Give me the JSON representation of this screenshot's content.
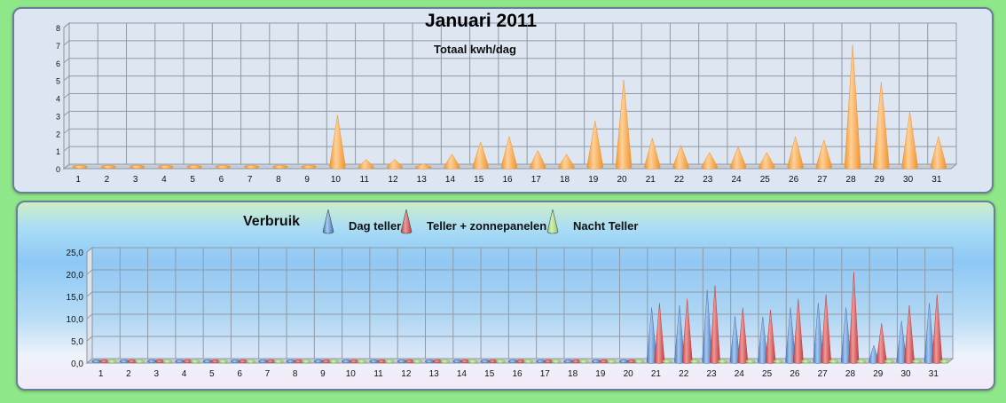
{
  "chart_data": [
    {
      "type": "bar",
      "title": "Januari 2011",
      "subtitle": "Totaal kwh/dag",
      "categories": [
        "1",
        "2",
        "3",
        "4",
        "5",
        "6",
        "7",
        "8",
        "9",
        "10",
        "11",
        "12",
        "13",
        "14",
        "15",
        "16",
        "17",
        "18",
        "19",
        "20",
        "21",
        "22",
        "23",
        "24",
        "25",
        "26",
        "27",
        "28",
        "29",
        "30",
        "31"
      ],
      "values": [
        0,
        0,
        0,
        0,
        0,
        0,
        0,
        0,
        0,
        2.9,
        0.4,
        0.4,
        0.15,
        0.7,
        1.4,
        1.7,
        0.9,
        0.7,
        2.6,
        4.9,
        1.6,
        1.2,
        0.8,
        1.1,
        0.8,
        1.7,
        1.5,
        6.9,
        4.8,
        3.1,
        1.7
      ],
      "yticks": [
        "0",
        "1",
        "2",
        "3",
        "4",
        "5",
        "6",
        "7",
        "8"
      ],
      "ylim": [
        0,
        8
      ],
      "grid": true,
      "colors": {
        "bar": "#f0922a"
      }
    },
    {
      "type": "bar",
      "title": "Verbruik",
      "categories": [
        "1",
        "2",
        "3",
        "4",
        "5",
        "6",
        "7",
        "8",
        "9",
        "10",
        "11",
        "12",
        "13",
        "14",
        "15",
        "16",
        "17",
        "18",
        "19",
        "20",
        "21",
        "22",
        "23",
        "24",
        "25",
        "26",
        "27",
        "28",
        "29",
        "30",
        "31"
      ],
      "series": [
        {
          "name": "Dag teller",
          "color": "#3f74b8",
          "values": [
            0,
            0,
            0,
            0,
            0,
            0,
            0,
            0,
            0,
            0,
            0,
            0,
            0,
            0,
            0,
            0,
            0,
            0,
            0,
            0,
            12.0,
            12.5,
            16.0,
            10.0,
            10.0,
            12.0,
            13.0,
            12.0,
            3.5,
            9.0,
            13.0
          ]
        },
        {
          "name": "Teller + zonnepanelen",
          "color": "#c13a3a",
          "values": [
            0,
            0,
            0,
            0,
            0,
            0,
            0,
            0,
            0,
            0,
            0,
            0,
            0,
            0,
            0,
            0,
            0,
            0,
            0,
            0,
            13.0,
            14.0,
            17.0,
            12.0,
            11.5,
            14.0,
            15.0,
            20.0,
            8.5,
            12.5,
            15.0
          ]
        },
        {
          "name": "Nacht Teller",
          "color": "#92c462",
          "values": [
            0,
            0,
            0,
            0,
            0,
            0,
            0,
            0,
            0,
            0,
            0,
            0,
            0,
            0,
            0,
            0,
            0,
            0,
            0,
            0,
            0,
            0,
            0,
            0,
            0,
            0,
            0,
            0,
            0,
            0,
            0
          ]
        }
      ],
      "legend_visible": [
        "Dag teller",
        "Teller + zonnepanelen",
        "Nacht Teller"
      ],
      "yticks": [
        "0,0",
        "5,0",
        "10,0",
        "15,0",
        "20,0",
        "25,0"
      ],
      "ylim": [
        0,
        25
      ],
      "legend_position": "top",
      "grid": true
    }
  ]
}
